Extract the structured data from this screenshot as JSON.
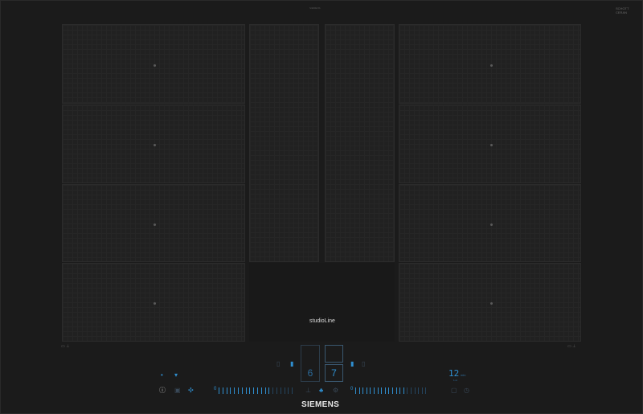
{
  "product": {
    "brand": "SIEMENS",
    "line": "studioLine",
    "glass_logo": "SCHOTT CERAN",
    "top_mark": "SIEMENS"
  },
  "colors": {
    "glass": "#1b1b1b",
    "zone": "#212121",
    "led": "#2f8fd0"
  },
  "zones": {
    "left": [
      "zone-left-1",
      "zone-left-2",
      "zone-left-3",
      "zone-left-4"
    ],
    "right": [
      "zone-right-1",
      "zone-right-2",
      "zone-right-3",
      "zone-right-4"
    ],
    "center": [
      "zone-center-left",
      "zone-center-right"
    ]
  },
  "controls": {
    "left_display": "6",
    "right_display": "7",
    "timer_value": "12",
    "timer_unit": "min",
    "timer_sub": "1-H",
    "slider_left_level": 0.7,
    "slider_right_level": 0.7,
    "slider_min_label": "0"
  },
  "icons": [
    "power-icon",
    "wifi-icon",
    "hood-icon",
    "fan-icon",
    "boost-icon",
    "frying-sensor-icon",
    "lock-icon",
    "timer-icon",
    "clock-icon"
  ]
}
